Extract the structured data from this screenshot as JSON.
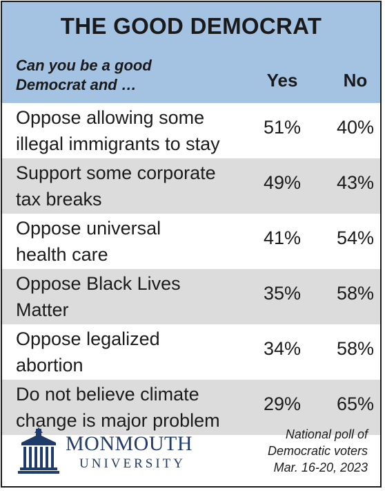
{
  "title": "THE GOOD DEMOCRAT",
  "question": [
    "Can you be a good",
    "Democrat and …"
  ],
  "columns": {
    "yes": "Yes",
    "no": "No"
  },
  "chart_data": {
    "type": "table",
    "title": "THE GOOD DEMOCRAT",
    "question": "Can you be a good Democrat and …",
    "columns": [
      "Yes",
      "No"
    ],
    "rows": [
      {
        "label": [
          "Oppose allowing some",
          "illegal immigrants to stay"
        ],
        "yes": "51%",
        "no": "40%"
      },
      {
        "label": [
          "Support some corporate",
          "tax breaks"
        ],
        "yes": "49%",
        "no": "43%"
      },
      {
        "label": [
          "Oppose universal",
          "health care"
        ],
        "yes": "41%",
        "no": "54%"
      },
      {
        "label": [
          "Oppose Black Lives",
          "Matter"
        ],
        "yes": "35%",
        "no": "58%"
      },
      {
        "label": [
          "Oppose legalized",
          "abortion"
        ],
        "yes": "34%",
        "no": "58%"
      },
      {
        "label": [
          "Do not believe climate",
          "change is major problem"
        ],
        "yes": "29%",
        "no": "65%"
      }
    ]
  },
  "footer": {
    "logo_word": "MONMOUTH",
    "logo_sub": "UNIVERSITY",
    "logo_icon": "university-building-icon",
    "source": [
      "National poll of",
      "Democratic voters",
      "Mar. 16-20, 2023"
    ]
  },
  "colors": {
    "header_bg": "#a4c3e3",
    "shaded_row": "#dcdcdc",
    "logo_blue": "#1f3b6a"
  }
}
